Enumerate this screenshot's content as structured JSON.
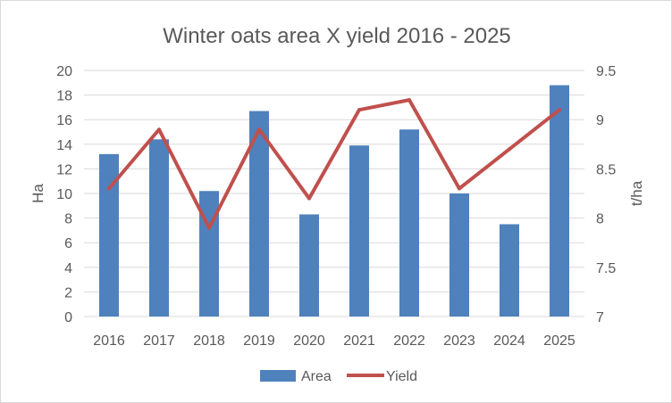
{
  "chart_data": {
    "type": "bar",
    "title": "Winter oats area X yield 2016 - 2025",
    "categories": [
      "2016",
      "2017",
      "2018",
      "2019",
      "2020",
      "2021",
      "2022",
      "2023",
      "2024",
      "2025"
    ],
    "series": [
      {
        "name": "Area",
        "type": "bar",
        "axis": "left",
        "color": "#4f81bd",
        "values": [
          13.2,
          14.4,
          10.2,
          16.7,
          8.3,
          13.9,
          15.2,
          10.0,
          7.5,
          18.8
        ]
      },
      {
        "name": "Yield",
        "type": "line",
        "axis": "right",
        "color": "#c0504d",
        "values": [
          8.3,
          8.9,
          7.9,
          8.9,
          8.2,
          9.1,
          9.2,
          8.3,
          8.7,
          9.1
        ]
      }
    ],
    "ylabel": "Ha",
    "y2label": "t/ha",
    "ylim": [
      0,
      20
    ],
    "y2lim": [
      7,
      9.5
    ],
    "yticks": [
      "0",
      "2",
      "4",
      "6",
      "8",
      "10",
      "12",
      "14",
      "16",
      "18",
      "20"
    ],
    "y2ticks": [
      "7",
      "7.5",
      "8",
      "8.5",
      "9",
      "9.5"
    ],
    "grid": true,
    "legend_position": "bottom"
  }
}
